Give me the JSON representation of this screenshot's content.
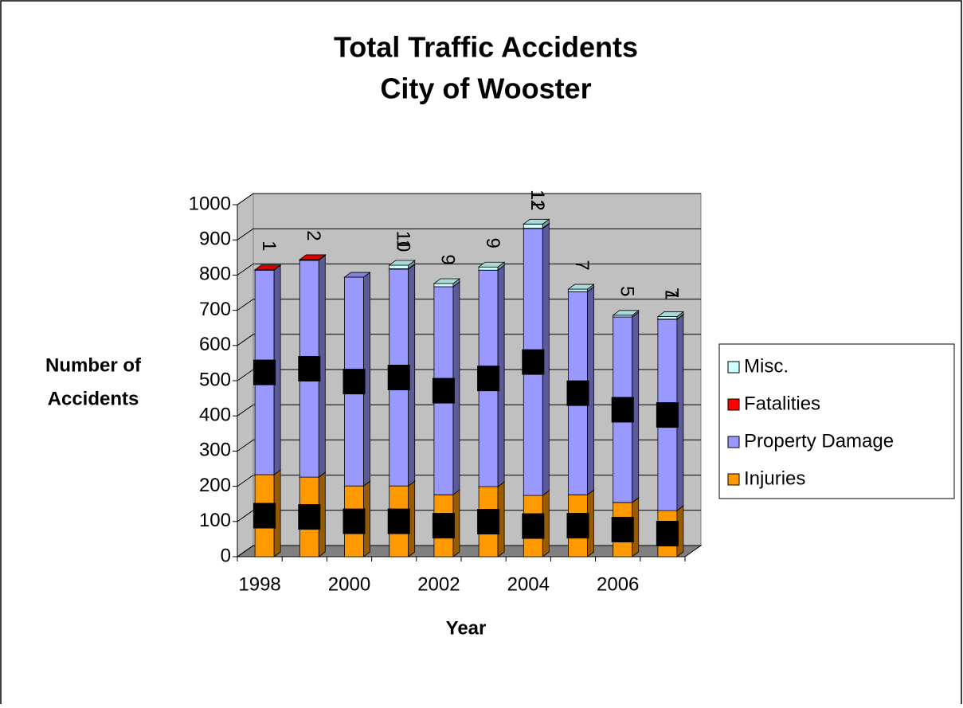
{
  "chart_data": {
    "type": "bar3d-stacked",
    "title": "Total Traffic Accidents",
    "subtitle": "City of Wooster",
    "ylabel": [
      "Number of",
      "Accidents"
    ],
    "xlabel": "Year",
    "categories": [
      "1998",
      null,
      "2000",
      null,
      "2002",
      null,
      "2004",
      null,
      "2006",
      null
    ],
    "series": [
      {
        "name": "Injuries",
        "color": "#ff9900",
        "values": [
          233,
          226,
          201,
          201,
          176,
          199,
          174,
          176,
          154,
          131
        ]
      },
      {
        "name": "Property Damage",
        "color": "#9999ff",
        "values": [
          581,
          616,
          593,
          616,
          591,
          615,
          758,
          577,
          527,
          543
        ]
      },
      {
        "name": "Fatalities",
        "color": "#ff0000",
        "labels": true,
        "values": [
          1,
          2,
          0,
          1,
          0,
          0,
          1,
          0,
          0,
          1
        ]
      },
      {
        "name": "Misc.",
        "color": "#ccffff",
        "labels": true,
        "values": [
          0,
          0,
          0,
          10,
          9,
          9,
          12,
          7,
          5,
          7
        ]
      }
    ],
    "ylim": [
      0,
      1000
    ],
    "yticks": [
      0,
      100,
      200,
      300,
      400,
      500,
      600,
      700,
      800,
      900,
      1000
    ],
    "grid": true,
    "legend": "right"
  }
}
